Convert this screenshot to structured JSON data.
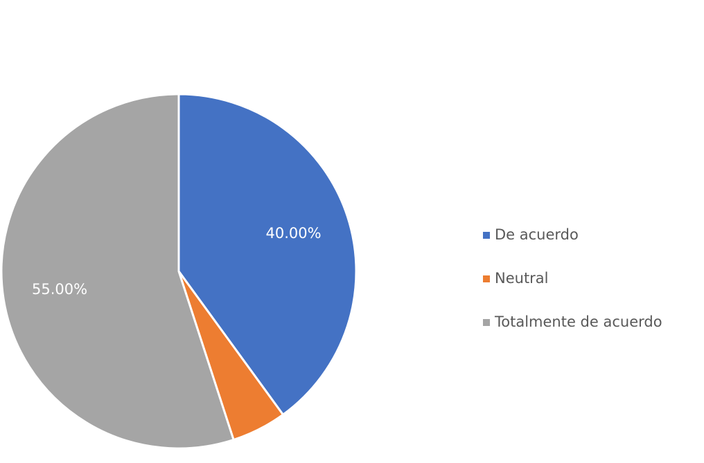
{
  "chart_data": {
    "type": "pie",
    "categories": [
      "De acuerdo",
      "Neutral",
      "Totalmente de acuerdo"
    ],
    "values": [
      40,
      5,
      55
    ],
    "value_labels": [
      "40.00%",
      null,
      "55.00%"
    ],
    "colors": [
      "#4472c4",
      "#ed7d31",
      "#a5a5a5"
    ],
    "legend": "right"
  }
}
